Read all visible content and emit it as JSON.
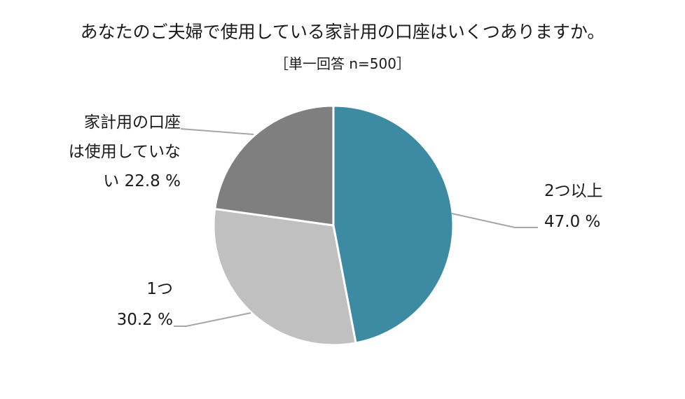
{
  "chart_data": {
    "type": "pie",
    "title": "あなたのご夫婦で使用している家計用の口座はいくつありますか。",
    "subtitle": "［単一回答  n=500］",
    "slices": [
      {
        "label_lines": [
          "2つ以上"
        ],
        "value": 47.0,
        "value_text": "47.0 %",
        "color": "#3d8ba2"
      },
      {
        "label_lines": [
          "1つ"
        ],
        "value": 30.2,
        "value_text": "30.2 %",
        "color": "#c0c0c0"
      },
      {
        "label_lines": [
          "家計用の口座",
          "は使用していな",
          "い"
        ],
        "value": 22.8,
        "value_text": "22.8 %",
        "color": "#7f7f7f"
      }
    ],
    "start_angle_deg": 0,
    "direction": "clockwise",
    "legend": "none",
    "leader_line_color": "#a6a6a6",
    "slice_border_color": "#ffffff"
  }
}
